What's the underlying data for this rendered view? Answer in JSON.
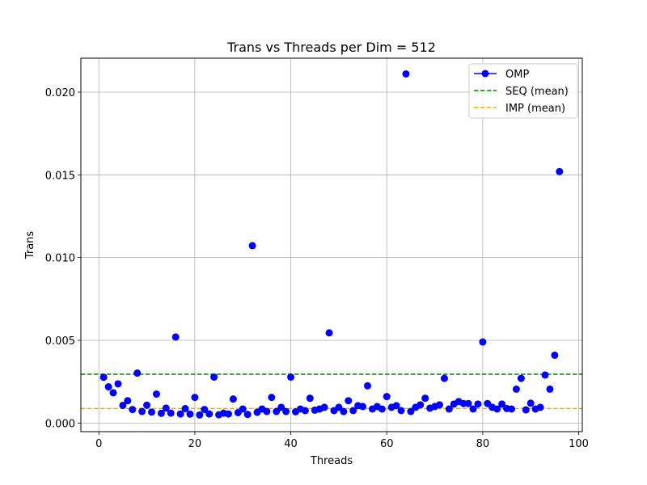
{
  "chart_data": {
    "type": "scatter",
    "title": "Trans vs Threads per Dim = 512",
    "xlabel": "Threads",
    "ylabel": "Trans",
    "xlim": [
      -3.75,
      100.75
    ],
    "ylim": [
      -0.00052,
      0.02205
    ],
    "xticks": [
      0,
      20,
      40,
      60,
      80,
      100
    ],
    "xtick_labels": [
      "0",
      "20",
      "40",
      "60",
      "80",
      "100"
    ],
    "yticks": [
      0.0,
      0.005,
      0.01,
      0.015,
      0.02
    ],
    "ytick_labels": [
      "0.000",
      "0.005",
      "0.010",
      "0.015",
      "0.020"
    ],
    "grid": true,
    "legend_position": "top-right",
    "series": [
      {
        "name": "OMP",
        "kind": "markers",
        "color": "#0000ff",
        "x": [
          1,
          2,
          3,
          4,
          5,
          6,
          7,
          8,
          9,
          10,
          11,
          12,
          13,
          14,
          15,
          16,
          17,
          18,
          19,
          20,
          21,
          22,
          23,
          24,
          25,
          26,
          27,
          28,
          29,
          30,
          31,
          32,
          33,
          34,
          35,
          36,
          37,
          38,
          39,
          40,
          41,
          42,
          43,
          44,
          45,
          46,
          47,
          48,
          49,
          50,
          51,
          52,
          53,
          54,
          55,
          56,
          57,
          58,
          59,
          60,
          61,
          62,
          63,
          64,
          65,
          66,
          67,
          68,
          69,
          70,
          71,
          72,
          73,
          74,
          75,
          76,
          77,
          78,
          79,
          80,
          81,
          82,
          83,
          84,
          85,
          86,
          87,
          88,
          89,
          90,
          91,
          92,
          93,
          94,
          95,
          96
        ],
        "y": [
          0.00277,
          0.00219,
          0.00183,
          0.00237,
          0.00107,
          0.00135,
          0.00082,
          0.00302,
          0.0007,
          0.00108,
          0.00066,
          0.00175,
          0.00059,
          0.0009,
          0.0006,
          0.0052,
          0.00055,
          0.00087,
          0.00054,
          0.00155,
          0.00049,
          0.00082,
          0.00055,
          0.00278,
          0.0005,
          0.0006,
          0.00055,
          0.00145,
          0.00063,
          0.00085,
          0.00052,
          0.01072,
          0.00065,
          0.00085,
          0.0007,
          0.00155,
          0.0007,
          0.00095,
          0.0007,
          0.00278,
          0.00068,
          0.00085,
          0.00075,
          0.0015,
          0.00078,
          0.00085,
          0.00095,
          0.00545,
          0.00075,
          0.00095,
          0.0007,
          0.00135,
          0.00075,
          0.00105,
          0.001,
          0.00225,
          0.00085,
          0.001,
          0.00085,
          0.0016,
          0.00095,
          0.00105,
          0.00075,
          0.0211,
          0.0007,
          0.00095,
          0.0011,
          0.0015,
          0.0009,
          0.001,
          0.0011,
          0.0027,
          0.00085,
          0.00115,
          0.0013,
          0.00118,
          0.00118,
          0.00085,
          0.00115,
          0.0049,
          0.00118,
          0.00095,
          0.00085,
          0.00115,
          0.00088,
          0.00085,
          0.00205,
          0.0027,
          0.0008,
          0.0012,
          0.00085,
          0.00095,
          0.0029,
          0.00205,
          0.0041,
          0.0152
        ]
      },
      {
        "name": "SEQ (mean)",
        "kind": "hline",
        "color": "#008000",
        "y": 0.00295
      },
      {
        "name": "IMP (mean)",
        "kind": "hline",
        "color": "#ffa500",
        "y": 0.00088
      }
    ]
  }
}
